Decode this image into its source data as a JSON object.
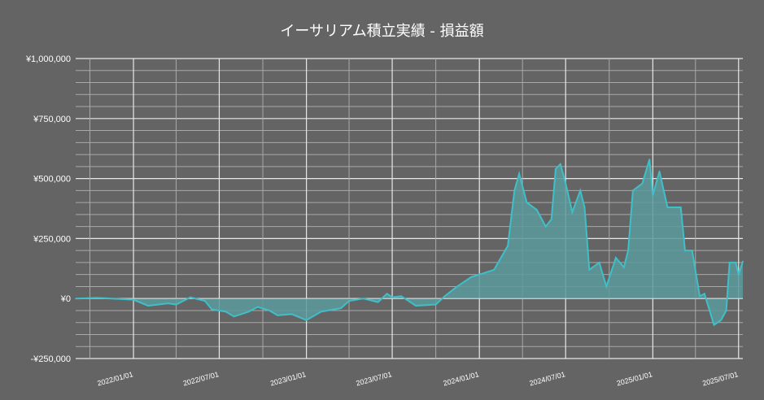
{
  "chart_data": {
    "type": "area",
    "title": "イーサリアム積立実績 - 損益額",
    "xlabel": "",
    "ylabel": "",
    "ylim": [
      -250000,
      1000000
    ],
    "xlim": [
      "2021-09-01",
      "2025-07-10"
    ],
    "grid": true,
    "y_ticks": [
      -250000,
      0,
      250000,
      500000,
      750000,
      1000000
    ],
    "y_tick_labels": [
      "-¥250,000",
      "¥0",
      "¥250,000",
      "¥500,000",
      "¥750,000",
      "¥1,000,000"
    ],
    "x_ticks": [
      "2022-01-01",
      "2022-07-01",
      "2023-01-01",
      "2023-07-01",
      "2024-01-01",
      "2024-07-01",
      "2025-01-01",
      "2025-07-01"
    ],
    "x_tick_labels": [
      "2022/01/01",
      "2022/07/01",
      "2023/01/01",
      "2023/07/01",
      "2024/01/01",
      "2024/07/01",
      "2025/01/01",
      "2025/07/01"
    ],
    "line_color": "#3fbfc8",
    "fill_color": "#5a9a9c",
    "series": [
      {
        "name": "損益額",
        "x": [
          "2021-09-01",
          "2021-10-15",
          "2022-01-01",
          "2022-02-01",
          "2022-03-15",
          "2022-04-01",
          "2022-05-01",
          "2022-06-01",
          "2022-06-15",
          "2022-07-15",
          "2022-08-01",
          "2022-09-01",
          "2022-09-20",
          "2022-10-15",
          "2022-11-01",
          "2022-12-01",
          "2023-01-01",
          "2023-02-01",
          "2023-03-15",
          "2023-04-01",
          "2023-05-01",
          "2023-06-01",
          "2023-06-20",
          "2023-07-01",
          "2023-07-20",
          "2023-08-20",
          "2023-10-01",
          "2023-10-20",
          "2023-11-15",
          "2023-12-15",
          "2024-01-01",
          "2024-02-01",
          "2024-03-01",
          "2024-03-15",
          "2024-03-25",
          "2024-04-10",
          "2024-05-01",
          "2024-05-20",
          "2024-06-01",
          "2024-06-10",
          "2024-06-20",
          "2024-07-01",
          "2024-07-15",
          "2024-08-01",
          "2024-08-10",
          "2024-08-20",
          "2024-09-10",
          "2024-09-25",
          "2024-10-15",
          "2024-11-01",
          "2024-11-10",
          "2024-11-20",
          "2024-12-10",
          "2024-12-25",
          "2025-01-01",
          "2025-01-15",
          "2025-02-01",
          "2025-03-01",
          "2025-03-10",
          "2025-03-25",
          "2025-04-10",
          "2025-04-20",
          "2025-05-10",
          "2025-05-25",
          "2025-06-05",
          "2025-06-12",
          "2025-06-25",
          "2025-07-01",
          "2025-07-10"
        ],
        "values": [
          0,
          3000,
          -5000,
          -30000,
          -20000,
          -25000,
          5000,
          -10000,
          -45000,
          -55000,
          -75000,
          -55000,
          -35000,
          -50000,
          -70000,
          -65000,
          -90000,
          -55000,
          -40000,
          -10000,
          0,
          -15000,
          20000,
          5000,
          10000,
          -30000,
          -25000,
          10000,
          50000,
          90000,
          100000,
          120000,
          220000,
          450000,
          520000,
          400000,
          370000,
          300000,
          330000,
          540000,
          560000,
          480000,
          360000,
          450000,
          380000,
          120000,
          150000,
          50000,
          170000,
          130000,
          200000,
          450000,
          480000,
          580000,
          430000,
          530000,
          380000,
          380000,
          200000,
          200000,
          10000,
          20000,
          -110000,
          -90000,
          -50000,
          150000,
          150000,
          100000,
          155000
        ]
      }
    ]
  }
}
